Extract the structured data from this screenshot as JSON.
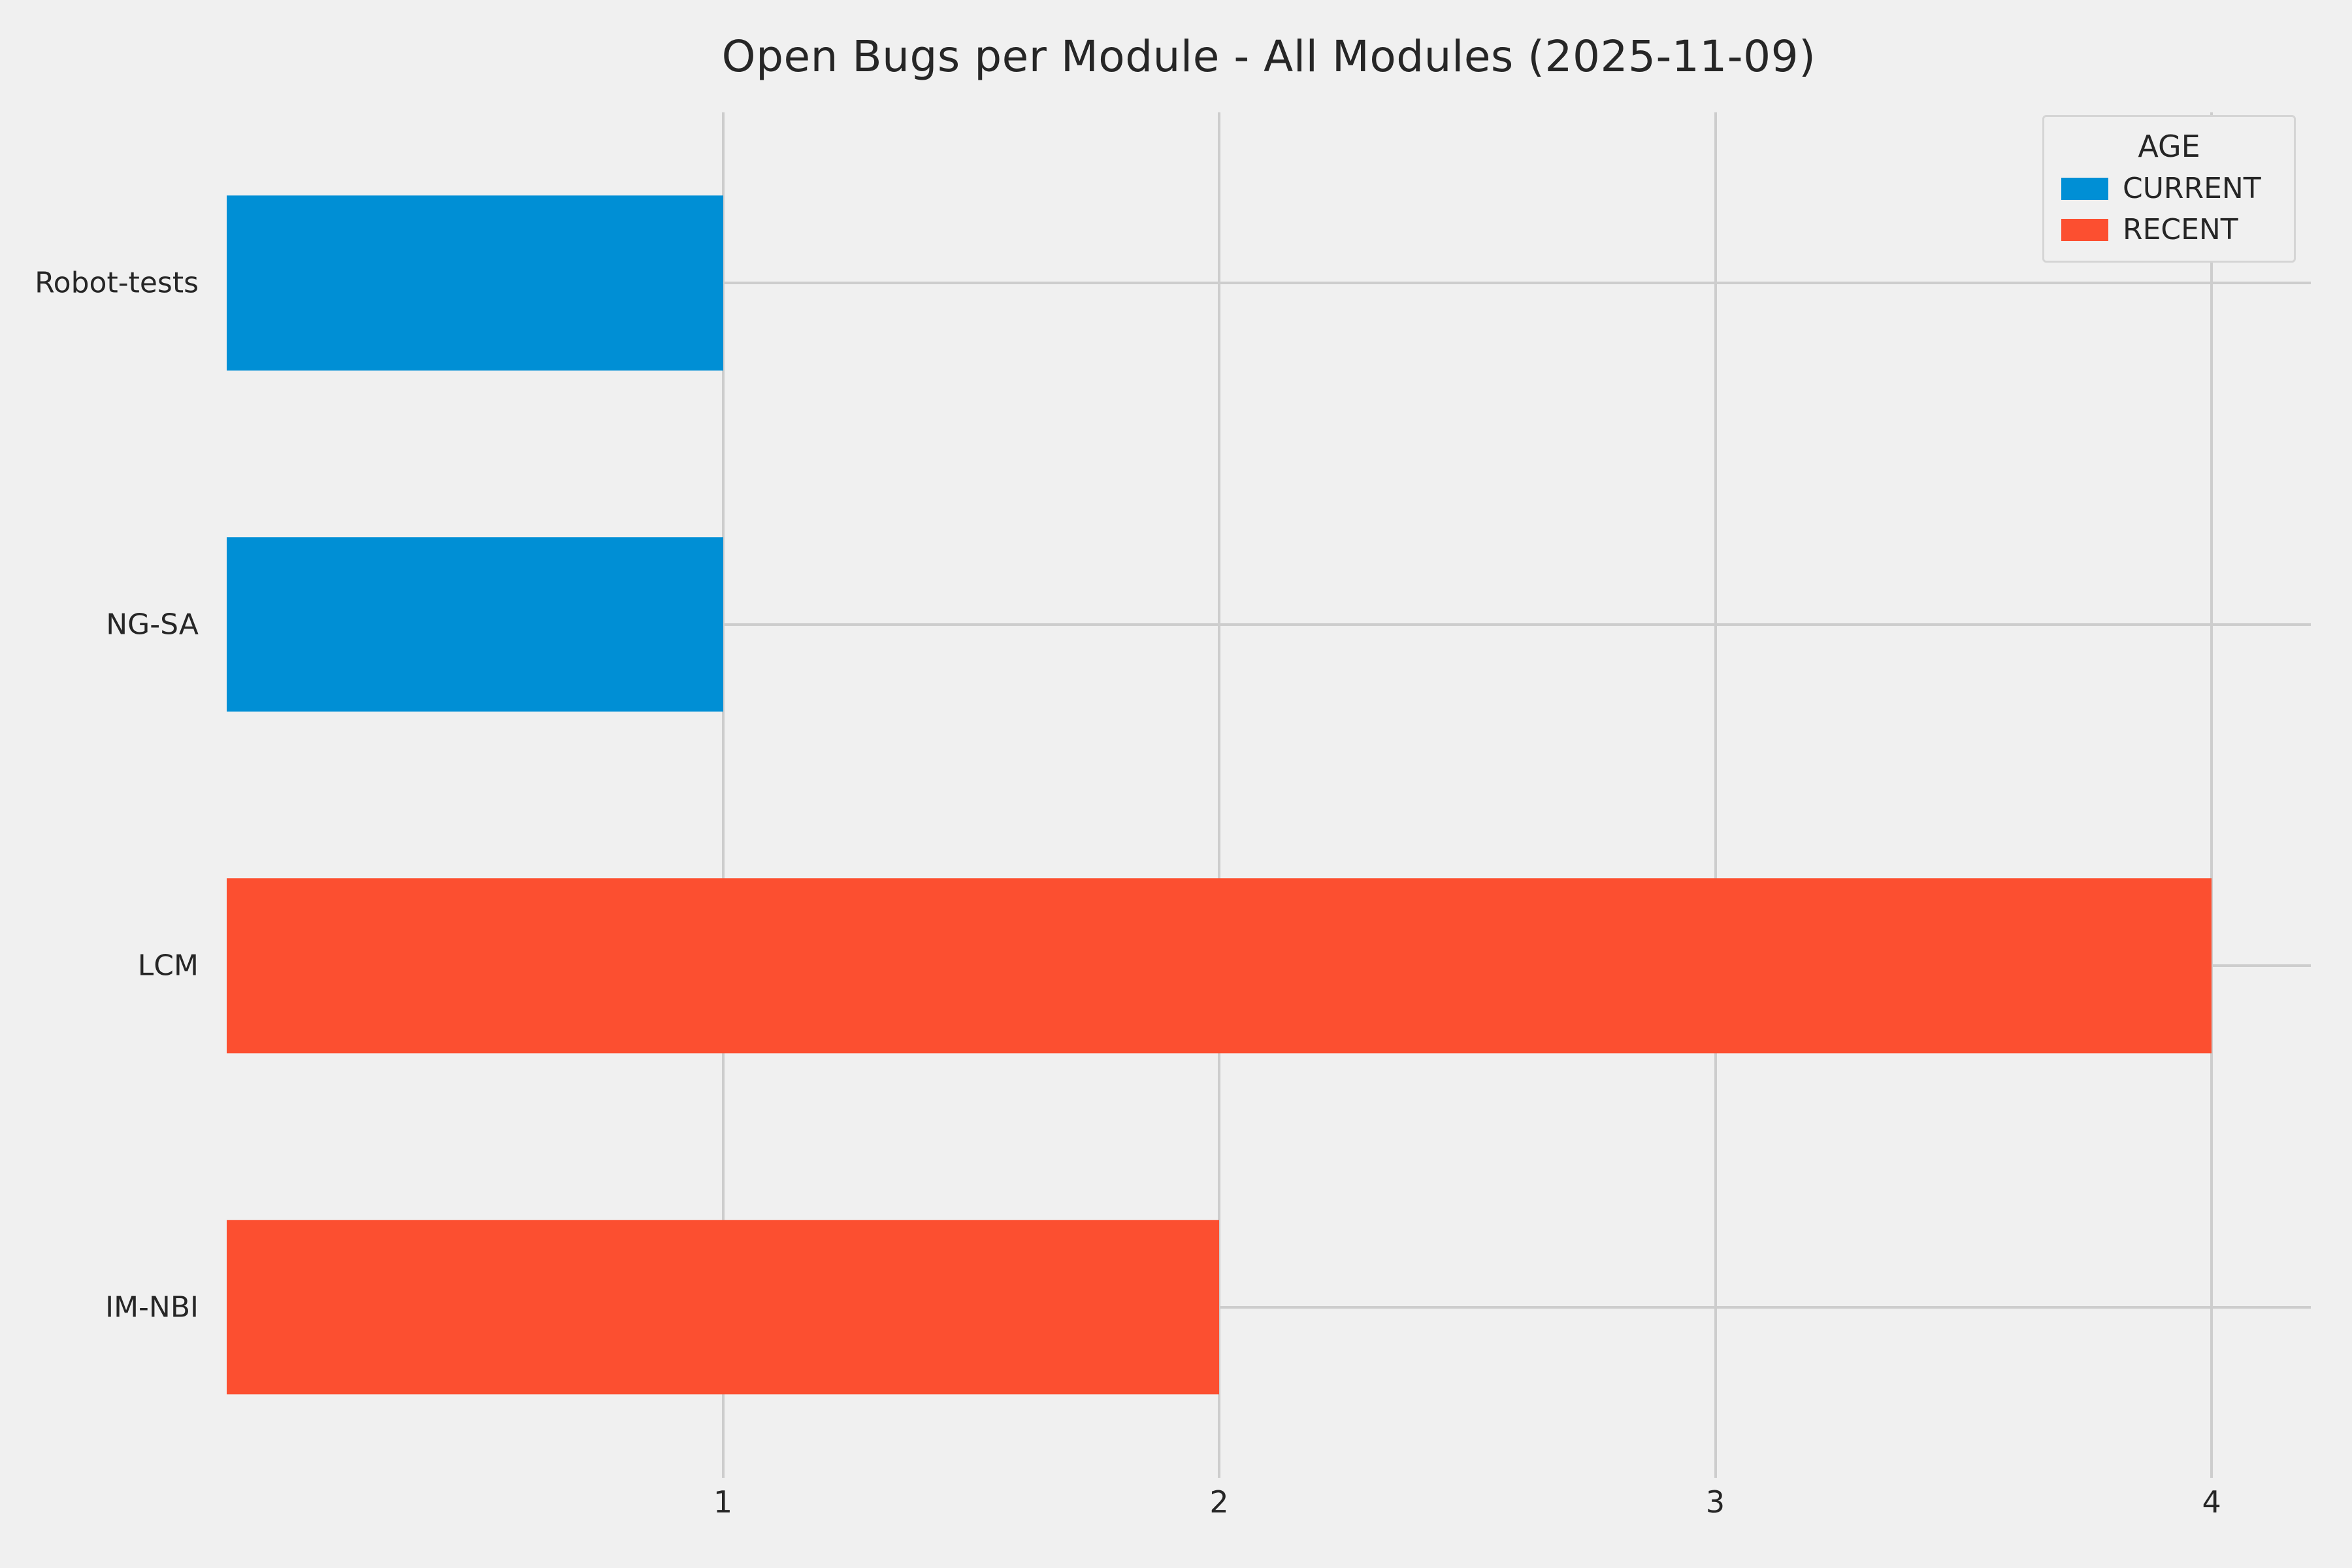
{
  "figure": {
    "background": "#f0f0f0",
    "grid_color": "#cdcdcd",
    "text_color": "#262626"
  },
  "chart_data": {
    "type": "bar",
    "orientation": "horizontal",
    "title": "Open Bugs per Module - All Modules (2025-11-09)",
    "categories": [
      "Robot-tests",
      "NG-SA",
      "LCM",
      "IM-NBI"
    ],
    "series": [
      {
        "name": "CURRENT",
        "color": "#008fd5",
        "values": [
          1,
          1,
          0,
          0
        ]
      },
      {
        "name": "RECENT",
        "color": "#fc4f30",
        "values": [
          0,
          0,
          4,
          2
        ]
      }
    ],
    "legend": {
      "title": "AGE",
      "position": "top-right"
    },
    "xlim": [
      0,
      4.2
    ],
    "xticks": [
      "1",
      "2",
      "3",
      "4"
    ],
    "grid": true
  }
}
